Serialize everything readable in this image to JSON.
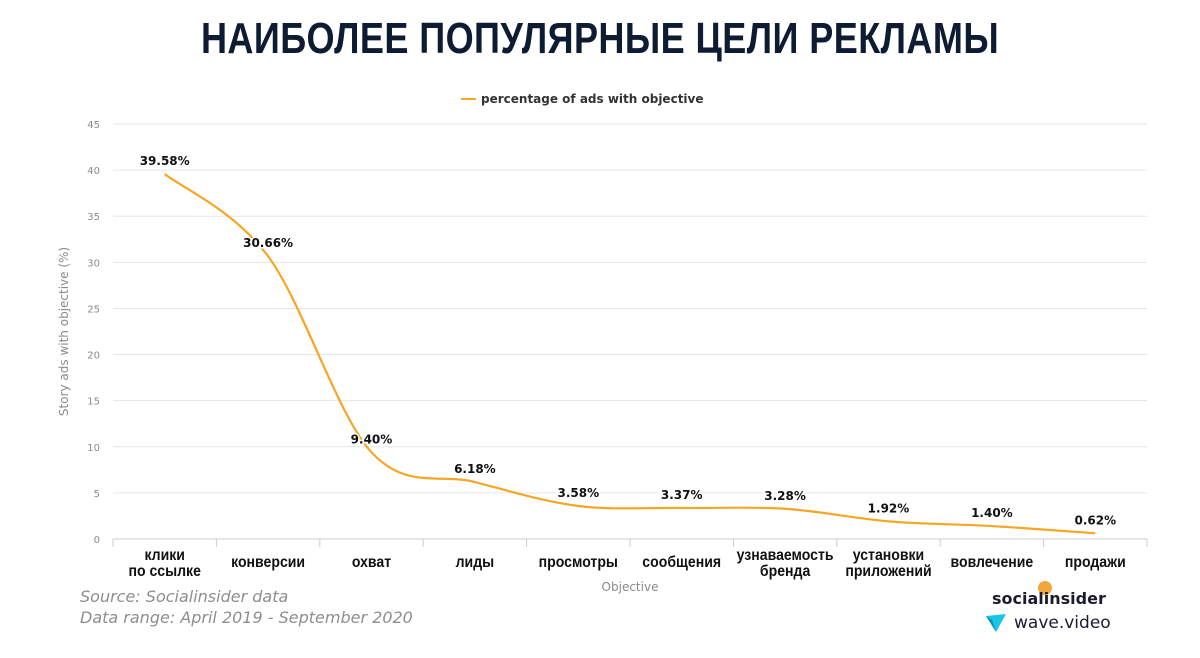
{
  "title": "НАИБОЛЕЕ ПОПУЛЯРНЫЕ ЦЕЛИ РЕКЛАМЫ",
  "colors": {
    "line": "#f6a623",
    "grid": "#e6e6e6",
    "title": "#0d1b33",
    "axis_text": "#8a8a8a"
  },
  "chart_data": {
    "type": "line",
    "categories": [
      [
        "клики",
        "по ссылке"
      ],
      [
        "конверсии"
      ],
      [
        "охват"
      ],
      [
        "лиды"
      ],
      [
        "просмотры"
      ],
      [
        "сообщения"
      ],
      [
        "узнаваемость",
        "бренда"
      ],
      [
        "установки",
        "приложений"
      ],
      [
        "вовлечение"
      ],
      [
        "продажи"
      ]
    ],
    "series": [
      {
        "name": "percentage of ads with objective",
        "values": [
          39.58,
          30.66,
          9.4,
          6.18,
          3.58,
          3.37,
          3.28,
          1.92,
          1.4,
          0.62
        ],
        "labels": [
          "39.58%",
          "30.66%",
          "9.40%",
          "6.18%",
          "3.58%",
          "3.37%",
          "3.28%",
          "1.92%",
          "1.40%",
          "0.62%"
        ]
      }
    ],
    "xlabel": "Objective",
    "ylabel": "Story ads with objective (%)",
    "ylim": [
      0,
      45
    ],
    "yticks": [
      0,
      5,
      10,
      15,
      20,
      25,
      30,
      35,
      40,
      45
    ],
    "grid": true,
    "legend": "top-center",
    "smooth": true
  },
  "footer": {
    "source": "Source: Socialinsider data",
    "range": "Data range: April 2019 - September 2020"
  },
  "brands": {
    "socialinsider": "socialinsider",
    "wave": "wave.video"
  }
}
